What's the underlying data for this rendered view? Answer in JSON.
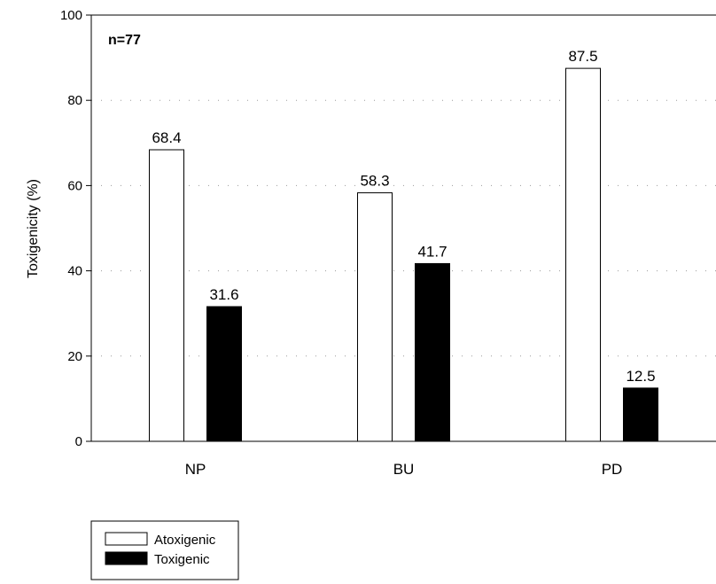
{
  "chart_data": {
    "type": "bar",
    "categories": [
      "NP",
      "BU",
      "PD"
    ],
    "series": [
      {
        "name": "Atoxigenic",
        "values": [
          68.4,
          58.3,
          87.5
        ],
        "color": "#ffffff"
      },
      {
        "name": "Toxigenic",
        "values": [
          31.6,
          41.7,
          12.5
        ],
        "color": "#000000"
      }
    ],
    "data_labels": [
      [
        "68.4",
        "58.3",
        "87.5"
      ],
      [
        "31.6",
        "41.7",
        "12.5"
      ]
    ],
    "ylabel": "Toxigenicity (%)",
    "xlabel": "",
    "ylim": [
      0,
      100
    ],
    "yticks": [
      0,
      20,
      40,
      60,
      80,
      100
    ],
    "grid": "dotted horizontal",
    "annotation": "n=77",
    "legend_position": "bottom-left"
  }
}
